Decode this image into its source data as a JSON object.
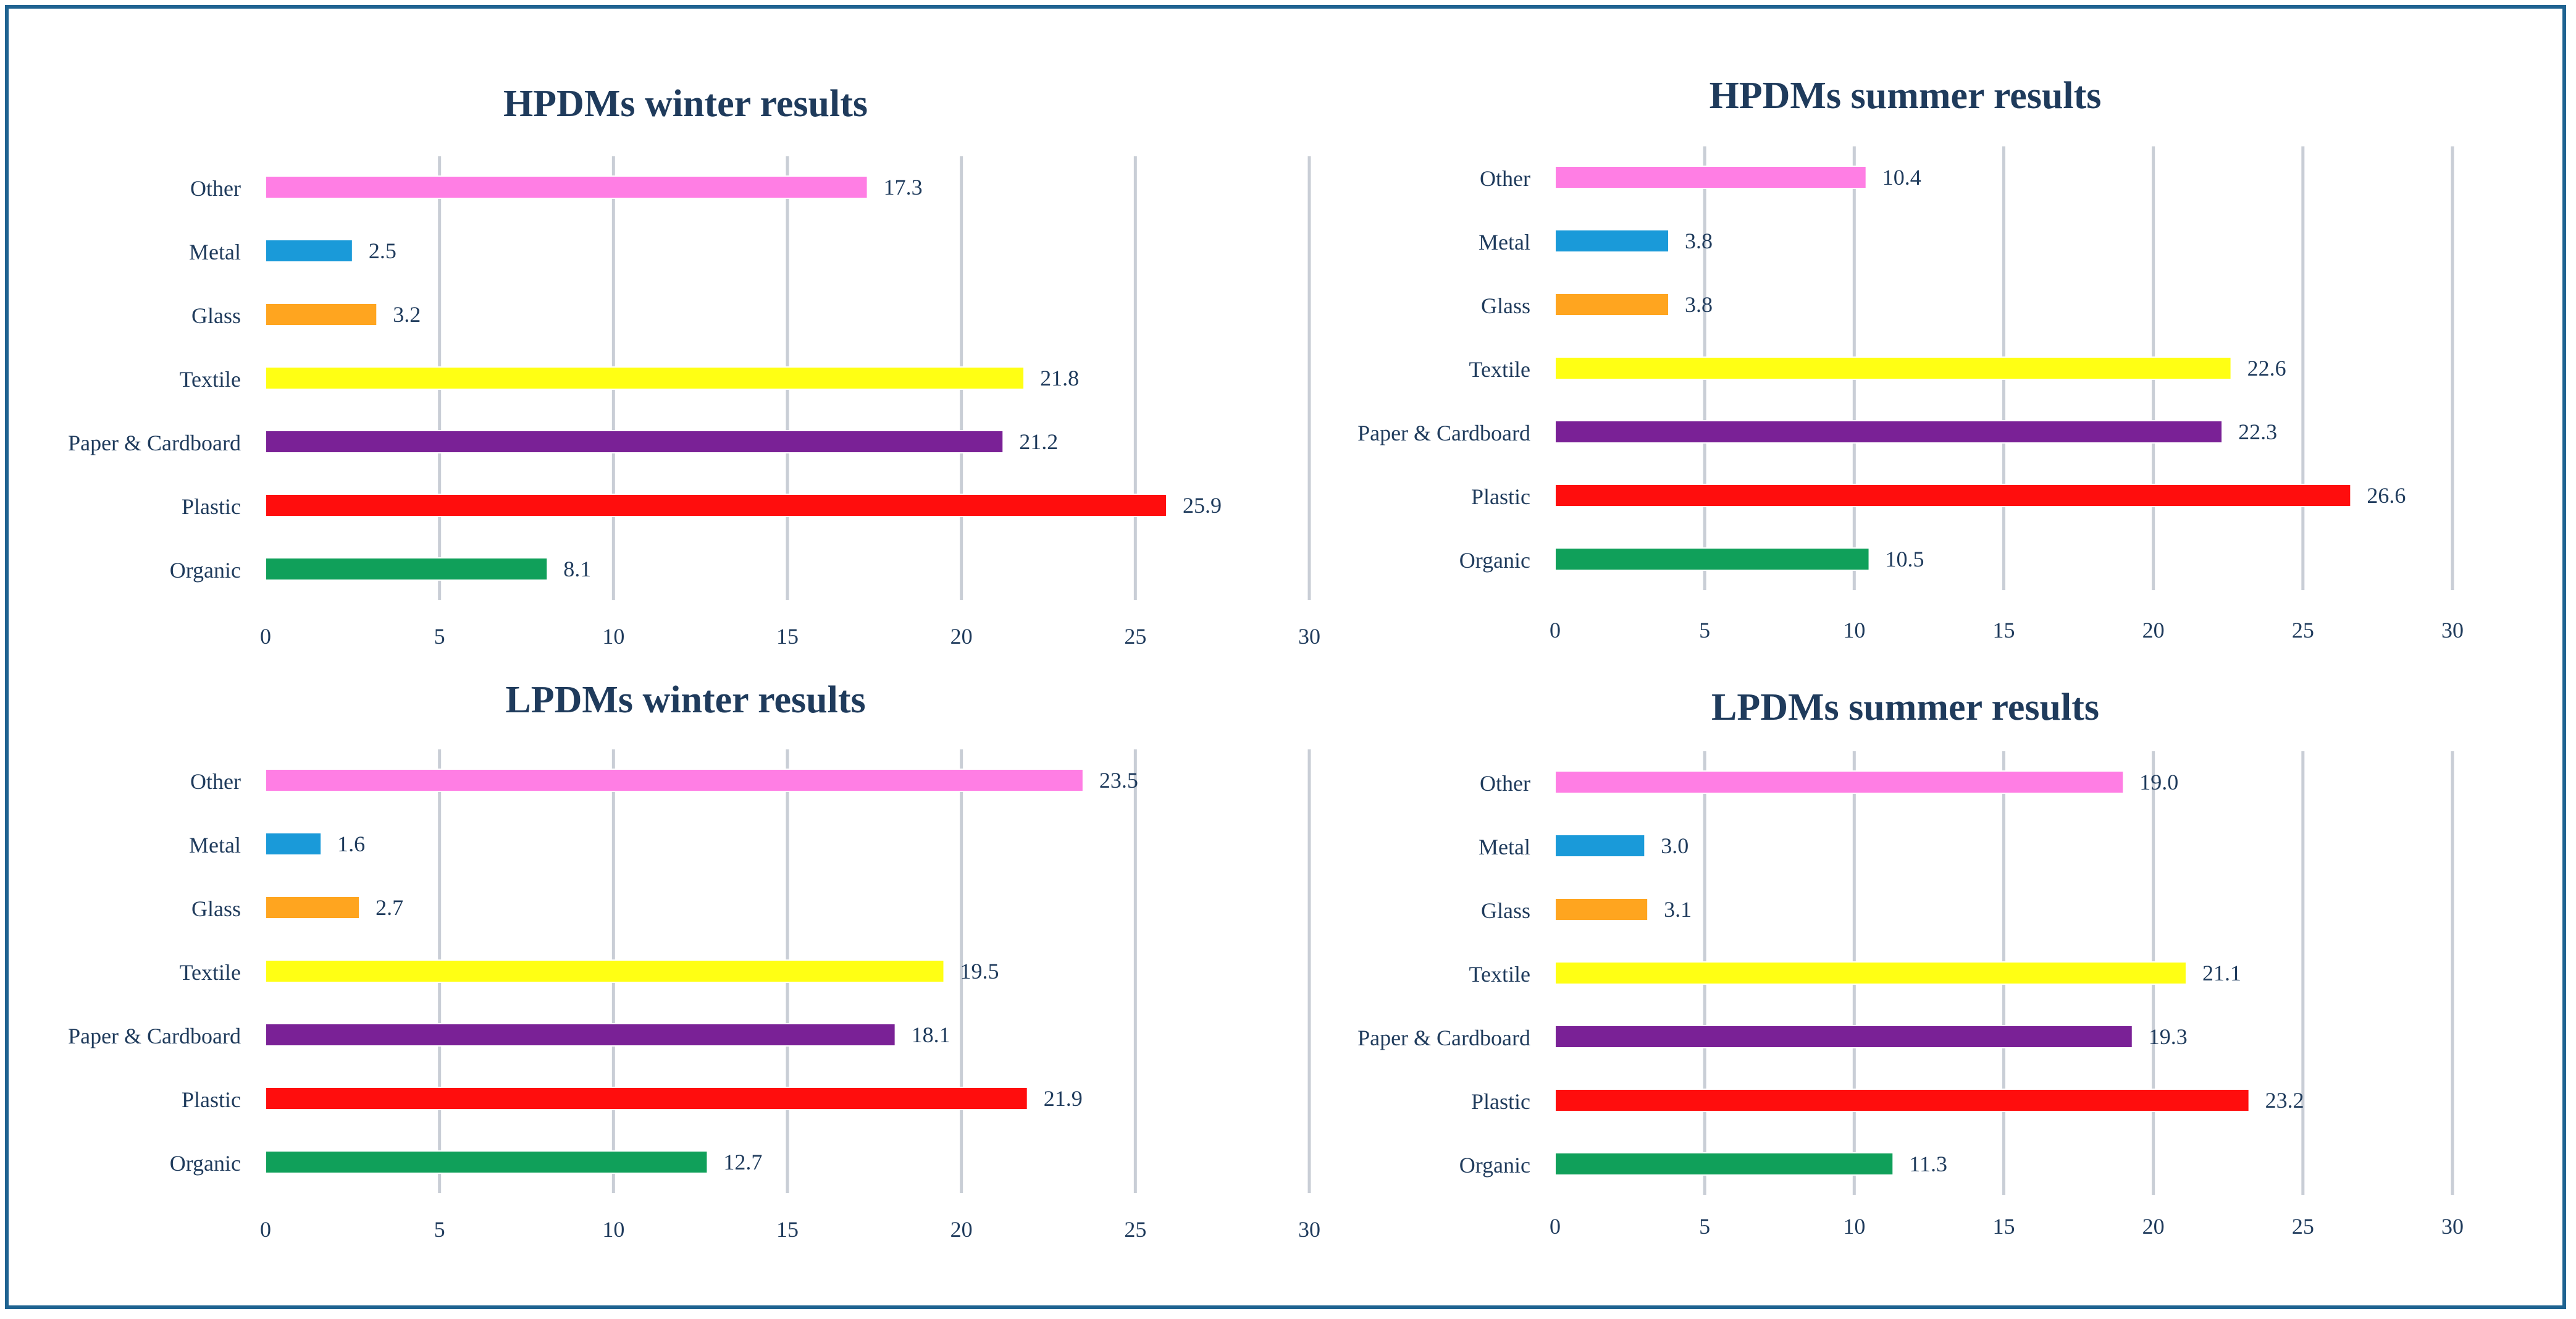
{
  "colors": {
    "Other": "#ff7ee4",
    "Metal": "#1a9ad9",
    "Glass": "#ffa51f",
    "Textile": "#ffff14",
    "Paper & Cardboard": "#7a2196",
    "Plastic": "#ff0d0d",
    "Organic": "#10a05a"
  },
  "chart_data": [
    {
      "type": "bar",
      "orientation": "horizontal",
      "title": "HPDMs winter results",
      "categories": [
        "Other",
        "Metal",
        "Glass",
        "Textile",
        "Paper & Cardboard",
        "Plastic",
        "Organic"
      ],
      "values": [
        17.3,
        2.5,
        3.2,
        21.8,
        21.2,
        25.9,
        8.1
      ],
      "data_labels": [
        "17.3",
        "2.5",
        "3.2",
        "21.8",
        "21.2",
        "25.9",
        "8.1"
      ],
      "xticks": [
        "0",
        "5",
        "10",
        "15",
        "20",
        "25",
        "30"
      ],
      "xlim": [
        0,
        30
      ],
      "grid": true
    },
    {
      "type": "bar",
      "orientation": "horizontal",
      "title": "HPDMs summer results",
      "categories": [
        "Other",
        "Metal",
        "Glass",
        "Textile",
        "Paper & Cardboard",
        "Plastic",
        "Organic"
      ],
      "values": [
        10.4,
        3.8,
        3.8,
        22.6,
        22.3,
        26.6,
        10.5
      ],
      "data_labels": [
        "10.4",
        "3.8",
        "3.8",
        "22.6",
        "22.3",
        "26.6",
        "10.5"
      ],
      "xticks": [
        "0",
        "5",
        "10",
        "15",
        "20",
        "25",
        "30"
      ],
      "xlim": [
        0,
        30
      ],
      "grid": true
    },
    {
      "type": "bar",
      "orientation": "horizontal",
      "title": "LPDMs winter results",
      "categories": [
        "Other",
        "Metal",
        "Glass",
        "Textile",
        "Paper & Cardboard",
        "Plastic",
        "Organic"
      ],
      "values": [
        23.5,
        1.6,
        2.7,
        19.5,
        18.1,
        21.9,
        12.7
      ],
      "data_labels": [
        "23.5",
        "1.6",
        "2.7",
        "19.5",
        "18.1",
        "21.9",
        "12.7"
      ],
      "xticks": [
        "0",
        "5",
        "10",
        "15",
        "20",
        "25",
        "30"
      ],
      "xlim": [
        0,
        30
      ],
      "grid": true
    },
    {
      "type": "bar",
      "orientation": "horizontal",
      "title": "LPDMs summer results",
      "categories": [
        "Other",
        "Metal",
        "Glass",
        "Textile",
        "Paper & Cardboard",
        "Plastic",
        "Organic"
      ],
      "values": [
        19.0,
        3.0,
        3.1,
        21.1,
        19.3,
        23.2,
        11.3
      ],
      "data_labels": [
        "19.0",
        "3.0",
        "3.1",
        "21.1",
        "19.3",
        "23.2",
        "11.3"
      ],
      "xticks": [
        "0",
        "5",
        "10",
        "15",
        "20",
        "25",
        "30"
      ],
      "xlim": [
        0,
        30
      ],
      "grid": true
    }
  ]
}
